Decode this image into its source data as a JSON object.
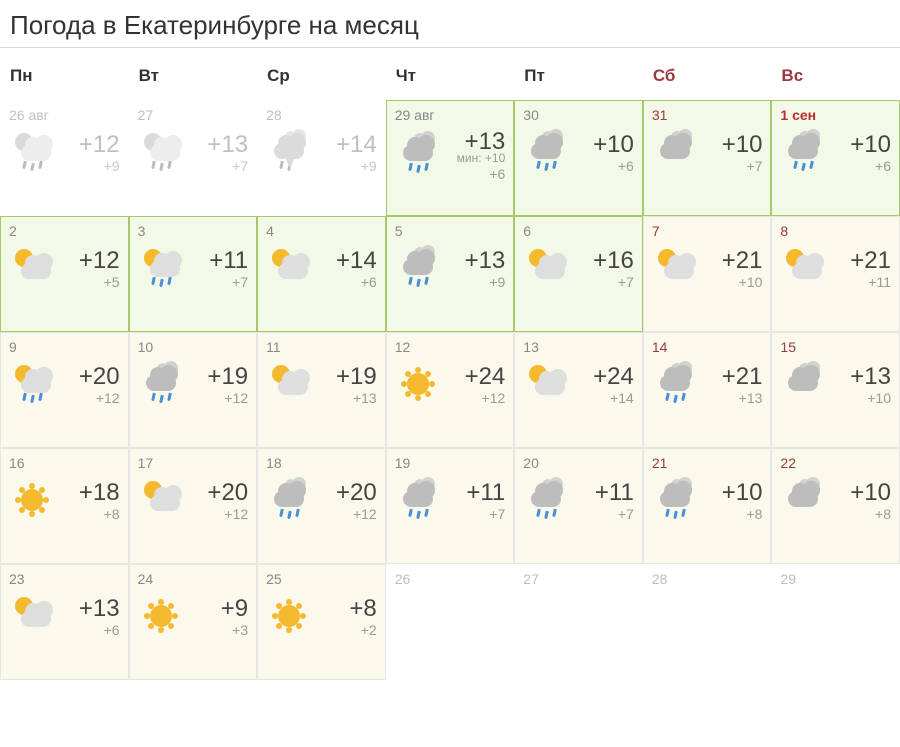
{
  "title": "Погода в Екатеринбурге на месяц",
  "colors": {
    "weekday_text": "#333333",
    "weekend_text": "#9a3a3a",
    "past_text": "#bfbfbf",
    "highlight_bg": "#f2f9e7",
    "highlight_border": "#a8c86a",
    "future_bg": "#fbf9ec",
    "hi_temp": "#444444",
    "lo_temp": "#9a9a9a",
    "sun": "#f5b92e",
    "cloud": "#bdbdbd",
    "cloud_back": "#d2d2d2",
    "rain": "#4a8fd6"
  },
  "week_headers": [
    "Пн",
    "Вт",
    "Ср",
    "Чт",
    "Пт",
    "Сб",
    "Вс"
  ],
  "weekend_indices": [
    5,
    6
  ],
  "cells": [
    {
      "date": "26 авг",
      "state": "past",
      "icon": "partly-rain",
      "hi": "+12",
      "lo": "+9"
    },
    {
      "date": "27",
      "state": "past",
      "icon": "partly-rain",
      "hi": "+13",
      "lo": "+7"
    },
    {
      "date": "28",
      "state": "past",
      "icon": "thunder",
      "hi": "+14",
      "lo": "+9"
    },
    {
      "date": "29 авг",
      "state": "hl",
      "icon": "overcast-rain",
      "hi": "+13",
      "lo": "+6",
      "min": "мин: +10"
    },
    {
      "date": "30",
      "state": "hl",
      "icon": "overcast-rain",
      "hi": "+10",
      "lo": "+6"
    },
    {
      "date": "31",
      "state": "hl",
      "icon": "overcast",
      "hi": "+10",
      "lo": "+7",
      "weekend": true
    },
    {
      "date": "1 сен",
      "state": "hl",
      "icon": "overcast-rain",
      "hi": "+10",
      "lo": "+6",
      "weekend": true,
      "bold": true
    },
    {
      "date": "2",
      "state": "hl",
      "icon": "partly",
      "hi": "+12",
      "lo": "+5"
    },
    {
      "date": "3",
      "state": "hl",
      "icon": "partly-rain",
      "hi": "+11",
      "lo": "+7"
    },
    {
      "date": "4",
      "state": "hl",
      "icon": "partly",
      "hi": "+14",
      "lo": "+6"
    },
    {
      "date": "5",
      "state": "hl",
      "icon": "overcast-rain",
      "hi": "+13",
      "lo": "+9"
    },
    {
      "date": "6",
      "state": "hl",
      "icon": "partly",
      "hi": "+16",
      "lo": "+7"
    },
    {
      "date": "7",
      "state": "fut",
      "icon": "partly",
      "hi": "+21",
      "lo": "+10",
      "weekend": true
    },
    {
      "date": "8",
      "state": "fut",
      "icon": "partly",
      "hi": "+21",
      "lo": "+11",
      "weekend": true
    },
    {
      "date": "9",
      "state": "fut",
      "icon": "partly-rain",
      "hi": "+20",
      "lo": "+12"
    },
    {
      "date": "10",
      "state": "fut",
      "icon": "overcast-rain",
      "hi": "+19",
      "lo": "+12"
    },
    {
      "date": "11",
      "state": "fut",
      "icon": "partly",
      "hi": "+19",
      "lo": "+13"
    },
    {
      "date": "12",
      "state": "fut",
      "icon": "sun",
      "hi": "+24",
      "lo": "+12"
    },
    {
      "date": "13",
      "state": "fut",
      "icon": "partly",
      "hi": "+24",
      "lo": "+14"
    },
    {
      "date": "14",
      "state": "fut",
      "icon": "overcast-rain",
      "hi": "+21",
      "lo": "+13",
      "weekend": true
    },
    {
      "date": "15",
      "state": "fut",
      "icon": "overcast",
      "hi": "+13",
      "lo": "+10",
      "weekend": true
    },
    {
      "date": "16",
      "state": "fut",
      "icon": "sun",
      "hi": "+18",
      "lo": "+8"
    },
    {
      "date": "17",
      "state": "fut",
      "icon": "partly",
      "hi": "+20",
      "lo": "+12"
    },
    {
      "date": "18",
      "state": "fut",
      "icon": "overcast-rain",
      "hi": "+20",
      "lo": "+12"
    },
    {
      "date": "19",
      "state": "fut",
      "icon": "overcast-rain",
      "hi": "+11",
      "lo": "+7"
    },
    {
      "date": "20",
      "state": "fut",
      "icon": "overcast-rain",
      "hi": "+11",
      "lo": "+7"
    },
    {
      "date": "21",
      "state": "fut",
      "icon": "overcast-rain",
      "hi": "+10",
      "lo": "+8",
      "weekend": true
    },
    {
      "date": "22",
      "state": "fut",
      "icon": "overcast",
      "hi": "+10",
      "lo": "+8",
      "weekend": true
    },
    {
      "date": "23",
      "state": "fut",
      "icon": "partly",
      "hi": "+13",
      "lo": "+6"
    },
    {
      "date": "24",
      "state": "fut",
      "icon": "sun",
      "hi": "+9",
      "lo": "+3"
    },
    {
      "date": "25",
      "state": "fut",
      "icon": "sun",
      "hi": "+8",
      "lo": "+2"
    },
    {
      "date": "26",
      "state": "empty"
    },
    {
      "date": "27",
      "state": "empty"
    },
    {
      "date": "28",
      "state": "empty"
    },
    {
      "date": "29",
      "state": "empty"
    }
  ]
}
